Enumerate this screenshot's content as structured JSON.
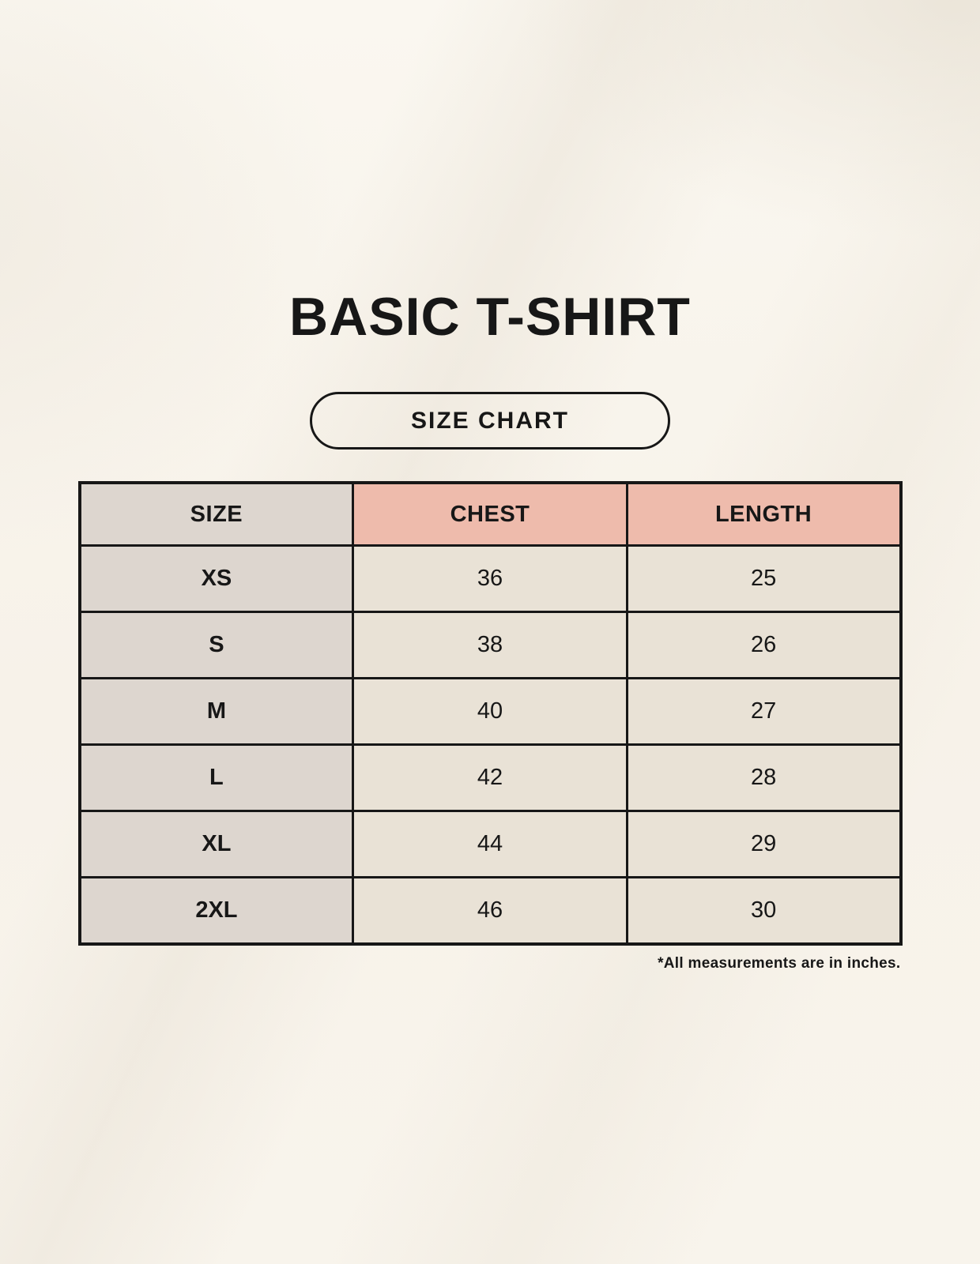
{
  "colors": {
    "background": "#f7f3ea",
    "header_accent_pink": "#eebbac",
    "size_column_gray": "#ddd6cf",
    "value_cell_cream": "#e9e2d6",
    "border": "#171717",
    "text": "#171717"
  },
  "chart_data": {
    "type": "table",
    "title": "BASIC T-SHIRT",
    "badge": "SIZE CHART",
    "columns": [
      "SIZE",
      "CHEST",
      "LENGTH"
    ],
    "rows": [
      [
        "XS",
        "36",
        "25"
      ],
      [
        "S",
        "38",
        "26"
      ],
      [
        "M",
        "40",
        "27"
      ],
      [
        "L",
        "42",
        "28"
      ],
      [
        "XL",
        "44",
        "29"
      ],
      [
        "2XL",
        "46",
        "30"
      ]
    ],
    "footnote": "*All measurements are in inches."
  }
}
